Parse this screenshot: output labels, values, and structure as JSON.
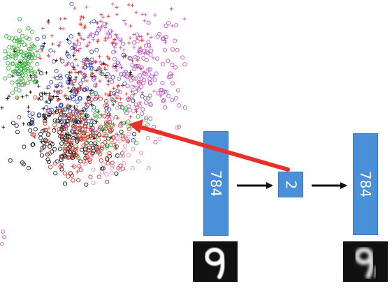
{
  "encoder": {
    "input_label": "784",
    "code_label": "2",
    "output_label": "784",
    "box_color": "#4a90d9"
  },
  "input_digit": {
    "digit": "9",
    "icon": "handwritten-digit-icon"
  },
  "output_digit": {
    "digit": "9",
    "icon": "reconstructed-digit-icon"
  },
  "arrow_color": "#e8302a",
  "colors": {
    "class_green": "#3bb33b",
    "class_red": "#d9362b",
    "class_black": "#1a1a1a",
    "class_blue": "#3d4fc4",
    "class_magenta": "#c455c8",
    "class_pink": "#e890b8"
  }
}
